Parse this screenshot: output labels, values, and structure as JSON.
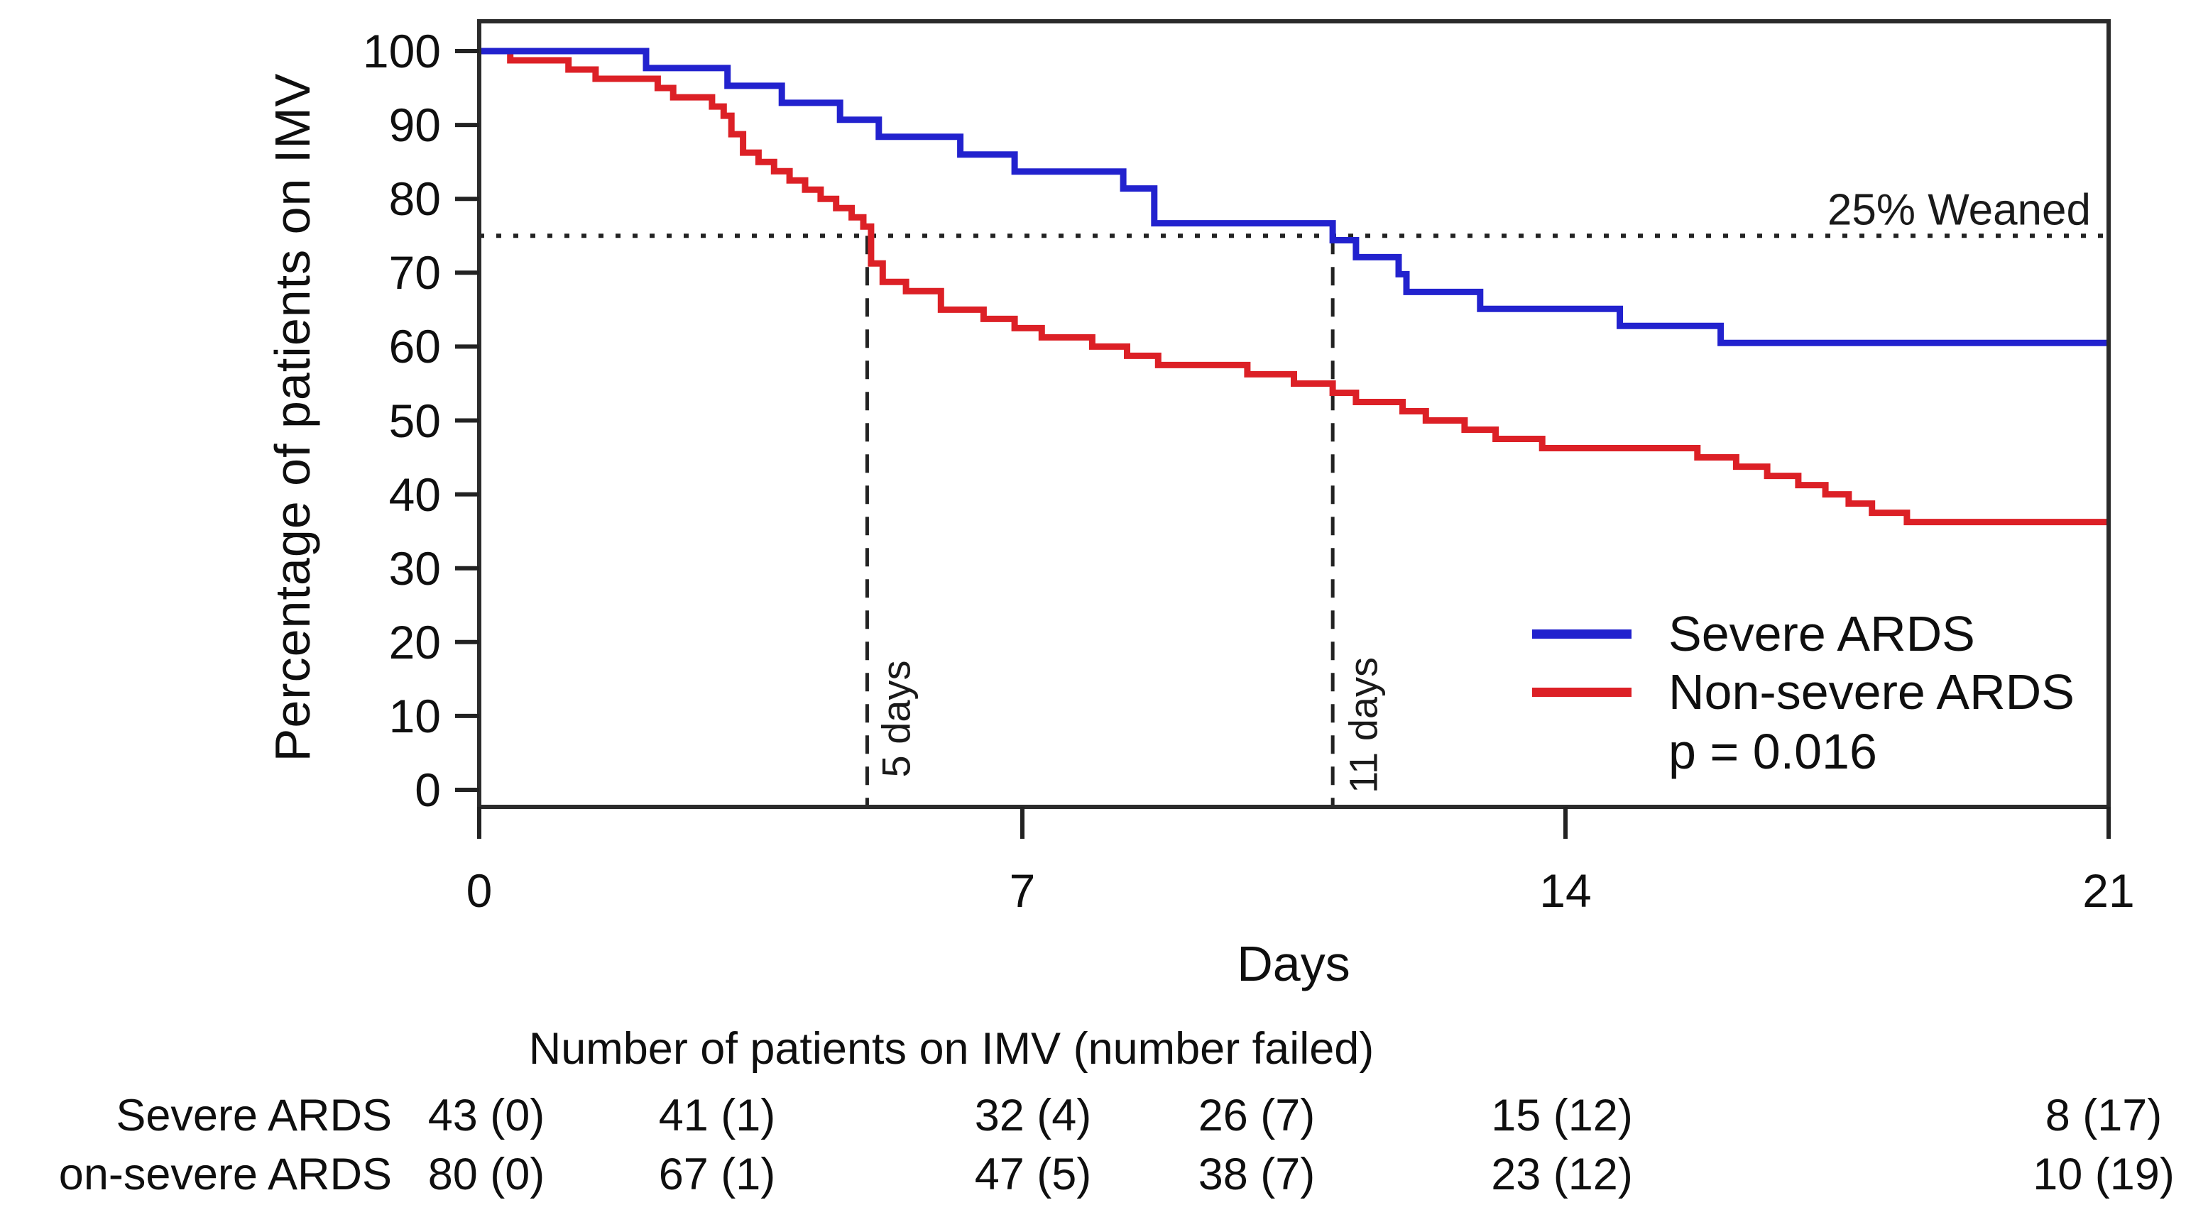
{
  "chart_data": {
    "type": "line",
    "subtype": "kaplan-meier-step",
    "title": "",
    "xlabel": "Days",
    "ylabel": "Percentage of patients on IMV",
    "xlim": [
      0,
      21
    ],
    "ylim": [
      0,
      100
    ],
    "x_ticks": [
      0,
      7,
      14,
      21
    ],
    "y_ticks": [
      0,
      10,
      20,
      30,
      40,
      50,
      60,
      70,
      80,
      90,
      100
    ],
    "grid": false,
    "axis_color": "#222222",
    "legend_position": "inside-bottom-right",
    "series": [
      {
        "name": "Severe ARDS",
        "color": "#2222CE",
        "steps": [
          [
            0,
            100
          ],
          [
            2.15,
            97.7
          ],
          [
            3.2,
            95.3
          ],
          [
            3.9,
            93.0
          ],
          [
            4.65,
            90.7
          ],
          [
            5.15,
            88.4
          ],
          [
            6.2,
            86.0
          ],
          [
            6.9,
            83.7
          ],
          [
            8.3,
            81.4
          ],
          [
            8.7,
            76.7
          ],
          [
            11.0,
            74.4
          ],
          [
            11.3,
            72.1
          ],
          [
            11.85,
            69.8
          ],
          [
            11.95,
            67.4
          ],
          [
            12.9,
            65.1
          ],
          [
            14.7,
            62.8
          ],
          [
            16.0,
            60.5
          ],
          [
            21,
            60.5
          ]
        ]
      },
      {
        "name": "Non-severe ARDS",
        "color": "#DC2026",
        "steps": [
          [
            0,
            100
          ],
          [
            0.4,
            98.75
          ],
          [
            1.15,
            97.5
          ],
          [
            1.5,
            96.25
          ],
          [
            2.3,
            95.0
          ],
          [
            2.5,
            93.75
          ],
          [
            3.0,
            92.5
          ],
          [
            3.15,
            91.25
          ],
          [
            3.25,
            88.75
          ],
          [
            3.4,
            86.25
          ],
          [
            3.6,
            85.0
          ],
          [
            3.8,
            83.75
          ],
          [
            4.0,
            82.5
          ],
          [
            4.2,
            81.25
          ],
          [
            4.4,
            80.0
          ],
          [
            4.6,
            78.75
          ],
          [
            4.8,
            77.5
          ],
          [
            4.95,
            76.25
          ],
          [
            5.05,
            71.25
          ],
          [
            5.2,
            68.75
          ],
          [
            5.5,
            67.5
          ],
          [
            5.95,
            65.0
          ],
          [
            6.5,
            63.75
          ],
          [
            6.9,
            62.5
          ],
          [
            7.25,
            61.25
          ],
          [
            7.9,
            60.0
          ],
          [
            8.35,
            58.75
          ],
          [
            8.75,
            57.5
          ],
          [
            9.9,
            56.25
          ],
          [
            10.5,
            55.0
          ],
          [
            11.0,
            53.75
          ],
          [
            11.3,
            52.5
          ],
          [
            11.9,
            51.25
          ],
          [
            12.2,
            50.0
          ],
          [
            12.7,
            48.75
          ],
          [
            13.1,
            47.5
          ],
          [
            13.7,
            46.25
          ],
          [
            15.7,
            45.0
          ],
          [
            16.2,
            43.75
          ],
          [
            16.6,
            42.5
          ],
          [
            17.0,
            41.25
          ],
          [
            17.35,
            40.0
          ],
          [
            17.65,
            38.75
          ],
          [
            17.95,
            37.5
          ],
          [
            18.4,
            36.25
          ],
          [
            21,
            36.25
          ]
        ]
      }
    ],
    "p_value_label": "p = 0.016",
    "annotations": {
      "weaned_line": {
        "y": 75,
        "label": "25% Weaned",
        "style": "dotted"
      },
      "vline_nonsevere": {
        "x": 5,
        "label": "5 days",
        "style": "dashed"
      },
      "vline_severe": {
        "x": 11,
        "label": "11 days",
        "style": "dashed"
      }
    },
    "risk_table": {
      "title": "Number of patients on IMV (number failed)",
      "row_labels": [
        "Severe ARDS",
        "on-severe ARDS"
      ],
      "rows": [
        [
          "43 (0)",
          "41 (1)",
          "32 (4)",
          "26 (7)",
          "15 (12)",
          "8 (17)"
        ],
        [
          "80 (0)",
          "67 (1)",
          "47 (5)",
          "38 (7)",
          "23 (12)",
          "10 (19)"
        ]
      ]
    }
  }
}
